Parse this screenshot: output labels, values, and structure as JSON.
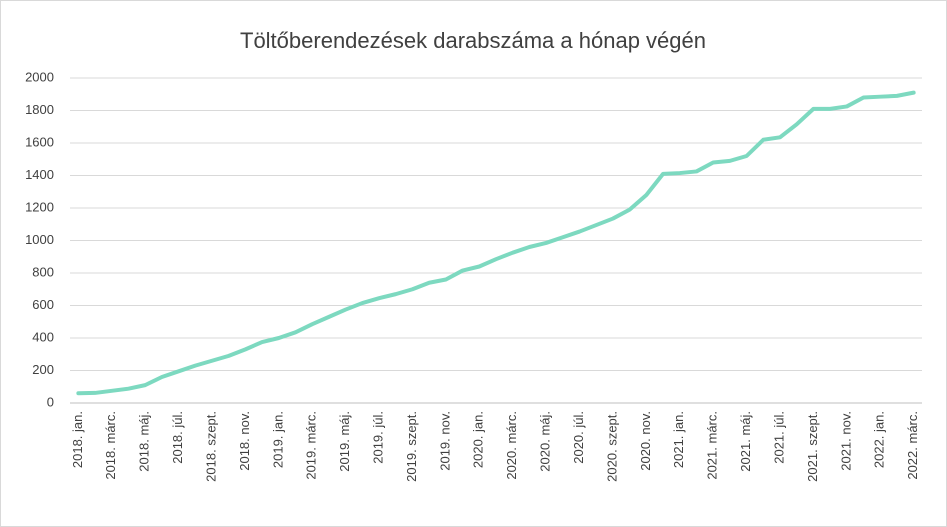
{
  "chart_data": {
    "type": "line",
    "title": "Töltőberendezések  darabszáma a hónap végén",
    "categories": [
      "2018. jan.",
      null,
      "2018. márc.",
      null,
      "2018. máj.",
      null,
      "2018. júl.",
      null,
      "2018. szept.",
      null,
      "2018. nov.",
      null,
      "2019. jan.",
      null,
      "2019. márc.",
      null,
      "2019. máj.",
      null,
      "2019. júl.",
      null,
      "2019. szept.",
      null,
      "2019. nov.",
      null,
      "2020. jan.",
      null,
      "2020. márc.",
      null,
      "2020. máj.",
      null,
      "2020. júl.",
      null,
      "2020. szept.",
      null,
      "2020. nov.",
      null,
      "2021. jan.",
      null,
      "2021. márc.",
      null,
      "2021. máj.",
      null,
      "2021. júl.",
      null,
      "2021. szept.",
      null,
      "2021. nov.",
      null,
      "2022. jan.",
      null,
      "2022. márc."
    ],
    "values": [
      60,
      62,
      75,
      88,
      110,
      160,
      195,
      230,
      260,
      290,
      330,
      375,
      400,
      435,
      485,
      530,
      575,
      615,
      645,
      670,
      700,
      740,
      760,
      815,
      840,
      885,
      925,
      960,
      985,
      1020,
      1055,
      1095,
      1135,
      1190,
      1280,
      1410,
      1415,
      1425,
      1480,
      1490,
      1520,
      1620,
      1635,
      1715,
      1810,
      1810,
      1825,
      1880,
      1885,
      1890,
      1910
    ],
    "color": "#7dd9c0",
    "ylim": [
      0,
      2000
    ],
    "yticks": [
      0,
      200,
      400,
      600,
      800,
      1000,
      1200,
      1400,
      1600,
      1800,
      2000
    ],
    "grid": true
  }
}
